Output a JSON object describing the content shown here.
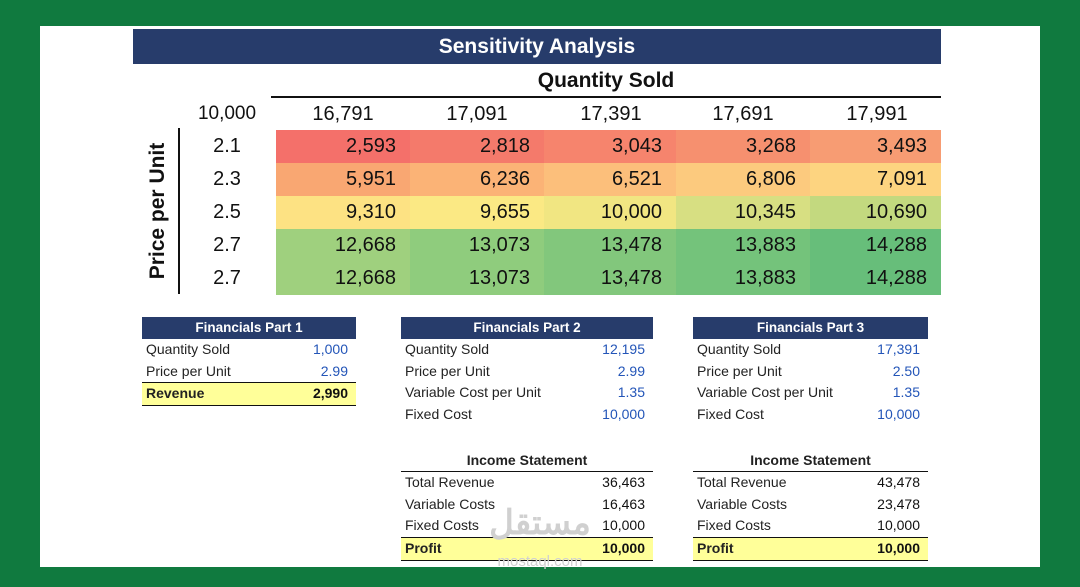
{
  "title": "Sensitivity Analysis",
  "quantity_title": "Quantity Sold",
  "price_axis_label": "Price per Unit",
  "corner_value": "10,000",
  "quantities": [
    "16,791",
    "17,091",
    "17,391",
    "17,691",
    "17,991"
  ],
  "prices": [
    "2.1",
    "2.3",
    "2.5",
    "2.7",
    "2.7"
  ],
  "grid": [
    [
      "2,593",
      "2,818",
      "3,043",
      "3,268",
      "3,493"
    ],
    [
      "5,951",
      "6,236",
      "6,521",
      "6,806",
      "7,091"
    ],
    [
      "9,310",
      "9,655",
      "10,000",
      "10,345",
      "10,690"
    ],
    [
      "12,668",
      "13,073",
      "13,478",
      "13,883",
      "14,288"
    ],
    [
      "12,668",
      "13,073",
      "13,478",
      "13,883",
      "14,288"
    ]
  ],
  "grid_colors": [
    [
      "#f4706a",
      "#f47a6b",
      "#f6846d",
      "#f6906f",
      "#f79c73"
    ],
    [
      "#f9a772",
      "#fbb376",
      "#fcbf7b",
      "#fcca7e",
      "#fdd480"
    ],
    [
      "#fde283",
      "#fbe984",
      "#f1e682",
      "#d7df82",
      "#c3d97f"
    ],
    [
      "#9fd07e",
      "#8fcc7d",
      "#82c77c",
      "#74c37b",
      "#67be7a"
    ],
    [
      "#9fd07e",
      "#8fcc7d",
      "#82c77c",
      "#74c37b",
      "#67be7a"
    ]
  ],
  "part1": {
    "title": "Financials Part 1",
    "rows": [
      {
        "label": "Quantity Sold",
        "value": "1,000"
      },
      {
        "label": "Price per Unit",
        "value": "2.99"
      }
    ],
    "total": {
      "label": "Revenue",
      "value": "2,990"
    }
  },
  "part2": {
    "title": "Financials Part 2",
    "rows": [
      {
        "label": "Quantity Sold",
        "value": "12,195"
      },
      {
        "label": "Price per Unit",
        "value": "2.99"
      },
      {
        "label": "Variable Cost per Unit",
        "value": "1.35"
      },
      {
        "label": "Fixed Cost",
        "value": "10,000"
      }
    ],
    "income": {
      "title": "Income Statement",
      "rows": [
        {
          "label": "Total Revenue",
          "value": "36,463"
        },
        {
          "label": "Variable Costs",
          "value": "16,463"
        },
        {
          "label": "Fixed Costs",
          "value": "10,000"
        }
      ],
      "total": {
        "label": "Profit",
        "value": "10,000"
      }
    }
  },
  "part3": {
    "title": "Financials Part 3",
    "rows": [
      {
        "label": "Quantity Sold",
        "value": "17,391"
      },
      {
        "label": "Price per Unit",
        "value": "2.50"
      },
      {
        "label": "Variable Cost per Unit",
        "value": "1.35"
      },
      {
        "label": "Fixed Cost",
        "value": "10,000"
      }
    ],
    "income": {
      "title": "Income Statement",
      "rows": [
        {
          "label": "Total Revenue",
          "value": "43,478"
        },
        {
          "label": "Variable Costs",
          "value": "23,478"
        },
        {
          "label": "Fixed Costs",
          "value": "10,000"
        }
      ],
      "total": {
        "label": "Profit",
        "value": "10,000"
      }
    }
  },
  "watermark": {
    "arabic": "مستقل",
    "latin": "mostaql.com"
  },
  "colors": {
    "frame": "#107a3f",
    "header": "#273c6b",
    "highlight": "#ffff99",
    "value_blue": "#2355b8"
  }
}
